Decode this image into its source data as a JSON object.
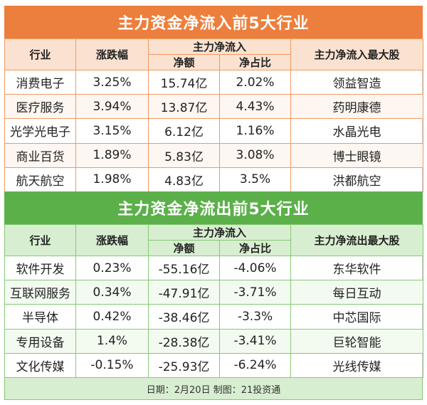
{
  "inflow": {
    "title": "主力资金净流入前5大行业",
    "headers": {
      "industry": "行业",
      "change": "涨跌幅",
      "main_net": "主力净流入",
      "net_amount": "净额",
      "net_ratio": "净占比",
      "top_stock": "主力净流入最大股"
    },
    "rows": [
      {
        "industry": "消费电子",
        "change": "3.25%",
        "net_amount": "15.74亿",
        "net_ratio": "2.02%",
        "top_stock": "领益智造"
      },
      {
        "industry": "医疗服务",
        "change": "3.94%",
        "net_amount": "13.87亿",
        "net_ratio": "4.43%",
        "top_stock": "药明康德"
      },
      {
        "industry": "光学光电子",
        "change": "3.15%",
        "net_amount": "6.12亿",
        "net_ratio": "1.16%",
        "top_stock": "水晶光电"
      },
      {
        "industry": "商业百货",
        "change": "1.89%",
        "net_amount": "5.83亿",
        "net_ratio": "3.08%",
        "top_stock": "博士眼镜"
      },
      {
        "industry": "航天航空",
        "change": "1.98%",
        "net_amount": "4.83亿",
        "net_ratio": "3.5%",
        "top_stock": "洪都航空"
      }
    ]
  },
  "outflow": {
    "title": "主力资金净流出前5大行业",
    "headers": {
      "industry": "行业",
      "change": "涨跌幅",
      "main_net": "主力净流入",
      "net_amount": "净额",
      "net_ratio": "净占比",
      "top_stock": "主力净流出最大股"
    },
    "rows": [
      {
        "industry": "软件开发",
        "change": "0.23%",
        "net_amount": "-55.16亿",
        "net_ratio": "-4.06%",
        "top_stock": "东华软件"
      },
      {
        "industry": "互联网服务",
        "change": "0.34%",
        "net_amount": "-47.91亿",
        "net_ratio": "-3.71%",
        "top_stock": "每日互动"
      },
      {
        "industry": "半导体",
        "change": "0.42%",
        "net_amount": "-38.46亿",
        "net_ratio": "-3.3%",
        "top_stock": "中芯国际"
      },
      {
        "industry": "专用设备",
        "change": "1.4%",
        "net_amount": "-28.38亿",
        "net_ratio": "-3.41%",
        "top_stock": "巨轮智能"
      },
      {
        "industry": "文化传媒",
        "change": "-0.15%",
        "net_amount": "-25.93亿",
        "net_ratio": "-6.24%",
        "top_stock": "光线传媒"
      }
    ]
  },
  "footer": "日期：2月20日  制图：21投资通"
}
